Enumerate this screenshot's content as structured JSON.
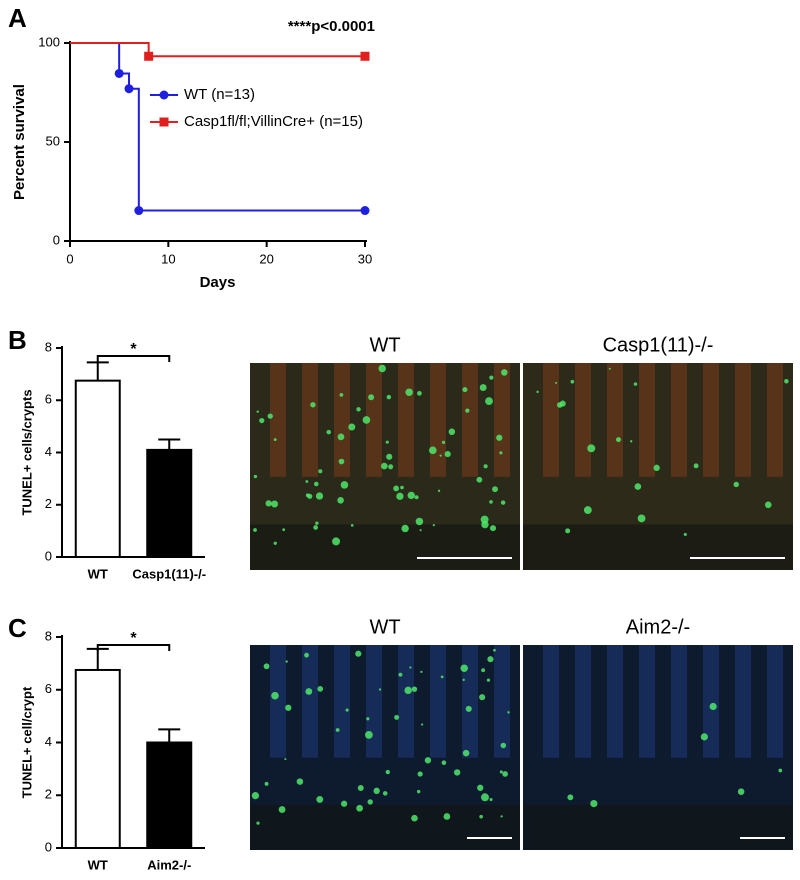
{
  "panels": [
    "A",
    "B",
    "C"
  ],
  "chart_data": [
    {
      "type": "line",
      "annotation": "****p<0.0001",
      "xlabel": "Days",
      "ylabel": "Percent survival",
      "xlim": [
        0,
        30
      ],
      "xticks": [
        0,
        10,
        20,
        30
      ],
      "ylim": [
        0,
        100
      ],
      "yticks": [
        0,
        50,
        100
      ],
      "series": [
        {
          "name": "WT (n=13)",
          "color": "#1f1fe0",
          "x": [
            0,
            5,
            6,
            7,
            30
          ],
          "values": [
            100,
            84.6,
            76.9,
            15.4,
            15.4
          ]
        },
        {
          "name": "Casp1fl/fl;VillinCre+ (n=15)",
          "color": "#e01f1f",
          "x": [
            0,
            8,
            30
          ],
          "values": [
            100,
            93.3,
            93.3
          ]
        }
      ]
    },
    {
      "type": "bar",
      "ylabel": "TUNEL+ cells/crypts",
      "annotation": "*",
      "categories": [
        "WT",
        "Casp1(11)-/-"
      ],
      "values": [
        6.75,
        4.1
      ],
      "errors": [
        0.7,
        0.4
      ],
      "colors": [
        "#ffffff",
        "#000000"
      ],
      "ylim": [
        0,
        8
      ],
      "yticks": [
        0,
        2,
        4,
        6,
        8
      ]
    },
    {
      "type": "bar",
      "ylabel": "TUNEL+ cell/crypt",
      "annotation": "*",
      "categories": [
        "WT",
        "Aim2-/-"
      ],
      "values": [
        6.75,
        4.0
      ],
      "errors": [
        0.8,
        0.5
      ],
      "colors": [
        "#ffffff",
        "#000000"
      ],
      "ylim": [
        0,
        8
      ],
      "yticks": [
        0,
        2,
        4,
        6,
        8
      ]
    }
  ],
  "images": [
    {
      "title": "WT"
    },
    {
      "title": "Casp1(11)-/-"
    },
    {
      "title": "WT"
    },
    {
      "title": "Aim2-/-"
    }
  ]
}
